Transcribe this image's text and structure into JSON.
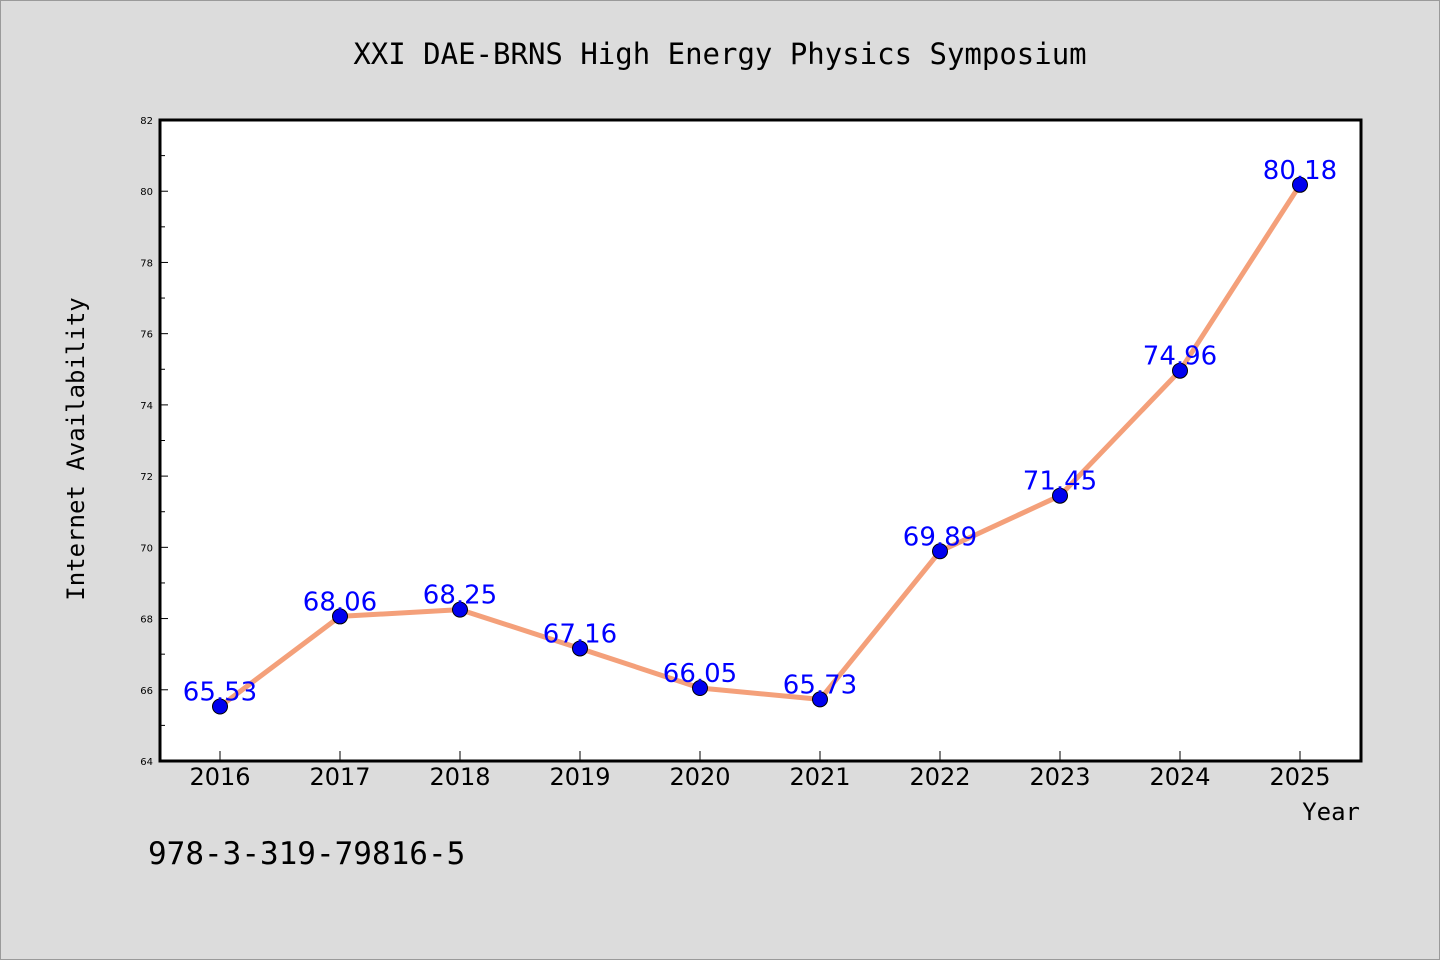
{
  "chart_data": {
    "type": "line",
    "title": "XXI DAE-BRNS High Energy Physics Symposium",
    "xlabel": "Year",
    "ylabel": "Internet Availability",
    "categories": [
      "2016",
      "2017",
      "2018",
      "2019",
      "2020",
      "2021",
      "2022",
      "2023",
      "2024",
      "2025"
    ],
    "series": [
      {
        "values": [
          65.53,
          68.06,
          68.25,
          67.16,
          66.05,
          65.73,
          69.89,
          71.45,
          74.96,
          80.18
        ],
        "data_labels": [
          "65.53",
          "68.06",
          "68.25",
          "67.16",
          "66.05",
          "65.73",
          "69.89",
          "71.45",
          "74.96",
          "80.18"
        ],
        "line_color": "#f4a07a",
        "marker_color": "#0000ee",
        "label_color": "#0000ff"
      }
    ],
    "ylim": [
      64,
      82
    ],
    "yticks": [
      "64",
      "66",
      "68",
      "70",
      "72",
      "74",
      "76",
      "78",
      "80",
      "82"
    ],
    "grid": false,
    "legend": "none"
  },
  "footer": "978-3-319-79816-5",
  "colors": {
    "background": "#dcdcdc",
    "plot_area": "#ffffff",
    "axis": "#000000"
  }
}
